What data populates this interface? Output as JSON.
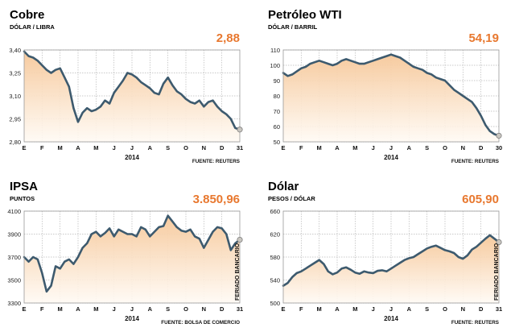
{
  "colors": {
    "line": "#3d5a6e",
    "fill_top": "#f6c89a",
    "fill_bottom": "#fffaf4",
    "last_value": "#e8782f",
    "end_dot": "#c9c6c0",
    "grid": "#b8b8b8",
    "frame": "#999999"
  },
  "chart_data": [
    {
      "type": "area",
      "title": "Cobre",
      "subtitle": "DÓLAR / LIBRA",
      "last_value_label": "2,88",
      "xlabel": "2014",
      "source": "FUENTE: REUTERS",
      "month_ticks": [
        "E",
        "F",
        "M",
        "A",
        "M",
        "J",
        "J",
        "A",
        "S",
        "O",
        "N",
        "D",
        "31"
      ],
      "y_ticks": [
        "3,40",
        "3,25",
        "3,10",
        "2,95",
        "2,80"
      ],
      "ylim": [
        2.8,
        3.4
      ],
      "vertical_note": "",
      "x": [
        0,
        0.25,
        0.5,
        0.75,
        1,
        1.25,
        1.5,
        1.75,
        2,
        2.25,
        2.5,
        2.75,
        3,
        3.25,
        3.5,
        3.75,
        4,
        4.25,
        4.5,
        4.75,
        5,
        5.25,
        5.5,
        5.75,
        6,
        6.25,
        6.5,
        6.75,
        7,
        7.25,
        7.5,
        7.75,
        8,
        8.25,
        8.5,
        8.75,
        9,
        9.25,
        9.5,
        9.75,
        10,
        10.25,
        10.5,
        10.75,
        11,
        11.25,
        11.5,
        11.75,
        12
      ],
      "values": [
        3.39,
        3.36,
        3.35,
        3.33,
        3.3,
        3.27,
        3.25,
        3.27,
        3.28,
        3.22,
        3.16,
        3.02,
        2.93,
        2.99,
        3.02,
        3.0,
        3.01,
        3.03,
        3.07,
        3.05,
        3.12,
        3.16,
        3.2,
        3.25,
        3.24,
        3.22,
        3.19,
        3.17,
        3.15,
        3.12,
        3.11,
        3.18,
        3.22,
        3.17,
        3.13,
        3.11,
        3.08,
        3.06,
        3.05,
        3.07,
        3.03,
        3.06,
        3.07,
        3.03,
        3.0,
        2.98,
        2.95,
        2.89,
        2.88
      ]
    },
    {
      "type": "area",
      "title": "Petróleo WTI",
      "subtitle": "DÓLAR / BARRIL",
      "last_value_label": "54,19",
      "xlabel": "2014",
      "source": "FUENTE: REUTERS",
      "month_ticks": [
        "E",
        "F",
        "M",
        "A",
        "M",
        "J",
        "J",
        "A",
        "S",
        "O",
        "N",
        "D",
        "30"
      ],
      "y_ticks": [
        "110",
        "100",
        "90",
        "80",
        "70",
        "60",
        "50"
      ],
      "ylim": [
        50,
        110
      ],
      "vertical_note": "",
      "x": [
        0,
        0.25,
        0.5,
        0.75,
        1,
        1.25,
        1.5,
        1.75,
        2,
        2.25,
        2.5,
        2.75,
        3,
        3.25,
        3.5,
        3.75,
        4,
        4.25,
        4.5,
        4.75,
        5,
        5.25,
        5.5,
        5.75,
        6,
        6.25,
        6.5,
        6.75,
        7,
        7.25,
        7.5,
        7.75,
        8,
        8.25,
        8.5,
        8.75,
        9,
        9.25,
        9.5,
        9.75,
        10,
        10.25,
        10.5,
        10.75,
        11,
        11.25,
        11.5,
        11.75,
        12
      ],
      "values": [
        95,
        93,
        94,
        96,
        98,
        99,
        101,
        102,
        103,
        102,
        101,
        100,
        101,
        103,
        104,
        103,
        102,
        101,
        101,
        102,
        103,
        104,
        105,
        106,
        107,
        106,
        105,
        103,
        101,
        99,
        98,
        97,
        95,
        94,
        92,
        91,
        90,
        87,
        84,
        82,
        80,
        78,
        76,
        72,
        67,
        61,
        57,
        55,
        54
      ]
    },
    {
      "type": "area",
      "title": "IPSA",
      "subtitle": "PUNTOS",
      "last_value_label": "3.850,96",
      "xlabel": "2014",
      "source": "FUENTE: BOLSA DE COMERCIO",
      "month_ticks": [
        "E",
        "F",
        "M",
        "A",
        "M",
        "J",
        "J",
        "A",
        "S",
        "O",
        "N",
        "D",
        "31"
      ],
      "y_ticks": [
        "4100",
        "3900",
        "3700",
        "3500",
        "3300"
      ],
      "ylim": [
        3300,
        4100
      ],
      "vertical_note": "FERIADO BANCARIO",
      "x": [
        0,
        0.25,
        0.5,
        0.75,
        1,
        1.25,
        1.5,
        1.75,
        2,
        2.25,
        2.5,
        2.75,
        3,
        3.25,
        3.5,
        3.75,
        4,
        4.25,
        4.5,
        4.75,
        5,
        5.25,
        5.5,
        5.75,
        6,
        6.25,
        6.5,
        6.75,
        7,
        7.25,
        7.5,
        7.75,
        8,
        8.25,
        8.5,
        8.75,
        9,
        9.25,
        9.5,
        9.75,
        10,
        10.25,
        10.5,
        10.75,
        11,
        11.25,
        11.5,
        11.75,
        12
      ],
      "values": [
        3700,
        3660,
        3700,
        3680,
        3560,
        3400,
        3450,
        3620,
        3600,
        3660,
        3680,
        3640,
        3700,
        3780,
        3820,
        3900,
        3920,
        3880,
        3910,
        3950,
        3880,
        3940,
        3920,
        3900,
        3900,
        3880,
        3960,
        3940,
        3880,
        3920,
        3960,
        3970,
        4060,
        4010,
        3960,
        3930,
        3920,
        3940,
        3880,
        3860,
        3780,
        3850,
        3920,
        3960,
        3950,
        3900,
        3760,
        3820,
        3850.96
      ]
    },
    {
      "type": "area",
      "title": "Dólar",
      "subtitle": "PESOS / DÓLAR",
      "last_value_label": "605,90",
      "xlabel": "2014",
      "source": "FUENTE: REUTERS",
      "month_ticks": [
        "E",
        "F",
        "M",
        "A",
        "M",
        "J",
        "J",
        "A",
        "S",
        "O",
        "N",
        "D",
        "31"
      ],
      "y_ticks": [
        "660",
        "620",
        "580",
        "540",
        "500"
      ],
      "ylim": [
        500,
        660
      ],
      "vertical_note": "FERIADO BANCARIO",
      "x": [
        0,
        0.25,
        0.5,
        0.75,
        1,
        1.25,
        1.5,
        1.75,
        2,
        2.25,
        2.5,
        2.75,
        3,
        3.25,
        3.5,
        3.75,
        4,
        4.25,
        4.5,
        4.75,
        5,
        5.25,
        5.5,
        5.75,
        6,
        6.25,
        6.5,
        6.75,
        7,
        7.25,
        7.5,
        7.75,
        8,
        8.25,
        8.5,
        8.75,
        9,
        9.25,
        9.5,
        9.75,
        10,
        10.25,
        10.5,
        10.75,
        11,
        11.25,
        11.5,
        11.75,
        12
      ],
      "values": [
        530,
        535,
        545,
        552,
        555,
        560,
        565,
        570,
        575,
        568,
        555,
        550,
        553,
        560,
        562,
        558,
        553,
        551,
        555,
        553,
        552,
        556,
        557,
        555,
        560,
        565,
        570,
        575,
        578,
        580,
        585,
        590,
        595,
        598,
        600,
        596,
        592,
        590,
        587,
        580,
        577,
        583,
        593,
        598,
        605,
        612,
        618,
        612,
        605.9
      ]
    }
  ]
}
